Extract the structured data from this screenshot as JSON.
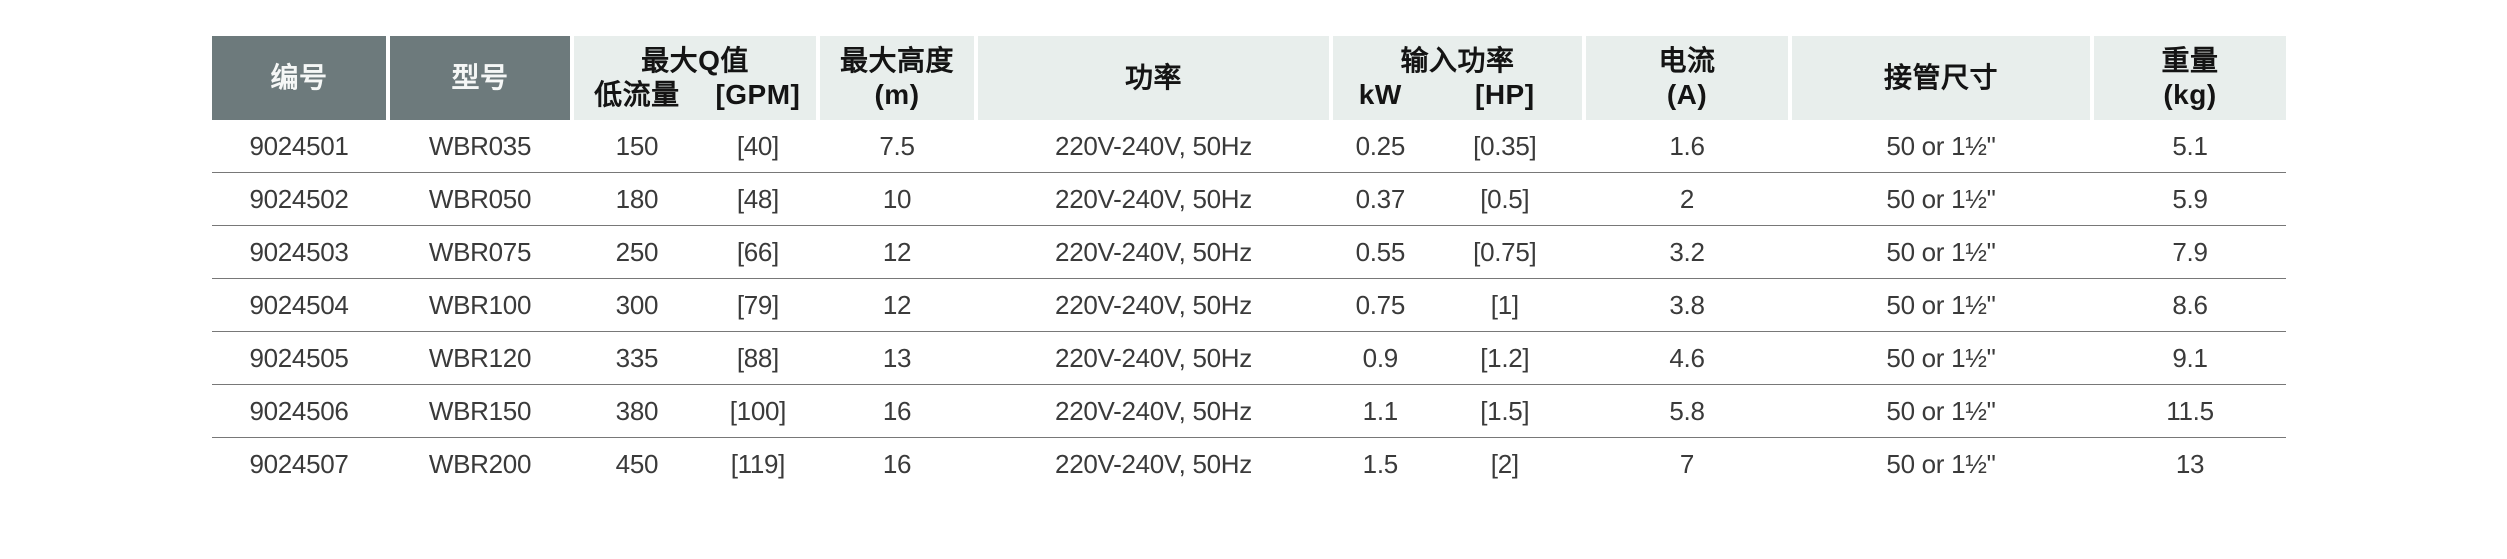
{
  "colors": {
    "header_dark_bg": "#6d7a7c",
    "header_light_bg": "#e8eeec",
    "header_dark_text": "#f5f7f6",
    "header_light_text": "#141414",
    "body_text": "#3a3a3a",
    "row_divider": "#787878",
    "page_bg": "#ffffff"
  },
  "header": {
    "c1": "编号",
    "c2": "型号",
    "c3_title": "最大Q值",
    "c3_sub_left": "低流量",
    "c3_sub_right": "[GPM]",
    "c4_title": "最大高度",
    "c4_unit": "(m)",
    "c5": "功率",
    "c6_title": "输入功率",
    "c6_sub_left": "kW",
    "c6_sub_right": "[HP]",
    "c7_title": "电流",
    "c7_unit": "(A)",
    "c8": "接管尺寸",
    "c9_title": "重量",
    "c9_unit": "(kg)"
  },
  "rows": [
    {
      "id": "9024501",
      "model": "WBR035",
      "q_lmin": "150",
      "q_gpm": "[40]",
      "head_m": "7.5",
      "power": "220V-240V, 50Hz",
      "kw": "0.25",
      "hp": "[0.35]",
      "current_a": "1.6",
      "pipe": "50 or 1½\"",
      "weight_kg": "5.1"
    },
    {
      "id": "9024502",
      "model": "WBR050",
      "q_lmin": "180",
      "q_gpm": "[48]",
      "head_m": "10",
      "power": "220V-240V, 50Hz",
      "kw": "0.37",
      "hp": "[0.5]",
      "current_a": "2",
      "pipe": "50 or 1½\"",
      "weight_kg": "5.9"
    },
    {
      "id": "9024503",
      "model": "WBR075",
      "q_lmin": "250",
      "q_gpm": "[66]",
      "head_m": "12",
      "power": "220V-240V, 50Hz",
      "kw": "0.55",
      "hp": "[0.75]",
      "current_a": "3.2",
      "pipe": "50 or 1½\"",
      "weight_kg": "7.9"
    },
    {
      "id": "9024504",
      "model": "WBR100",
      "q_lmin": "300",
      "q_gpm": "[79]",
      "head_m": "12",
      "power": "220V-240V, 50Hz",
      "kw": "0.75",
      "hp": "[1]",
      "current_a": "3.8",
      "pipe": "50 or 1½\"",
      "weight_kg": "8.6"
    },
    {
      "id": "9024505",
      "model": "WBR120",
      "q_lmin": "335",
      "q_gpm": "[88]",
      "head_m": "13",
      "power": "220V-240V, 50Hz",
      "kw": "0.9",
      "hp": "[1.2]",
      "current_a": "4.6",
      "pipe": "50 or 1½\"",
      "weight_kg": "9.1"
    },
    {
      "id": "9024506",
      "model": "WBR150",
      "q_lmin": "380",
      "q_gpm": "[100]",
      "head_m": "16",
      "power": "220V-240V, 50Hz",
      "kw": "1.1",
      "hp": "[1.5]",
      "current_a": "5.8",
      "pipe": "50 or 1½\"",
      "weight_kg": "11.5"
    },
    {
      "id": "9024507",
      "model": "WBR200",
      "q_lmin": "450",
      "q_gpm": "[119]",
      "head_m": "16",
      "power": "220V-240V, 50Hz",
      "kw": "1.5",
      "hp": "[2]",
      "current_a": "7",
      "pipe": "50 or 1½\"",
      "weight_kg": "13"
    }
  ]
}
